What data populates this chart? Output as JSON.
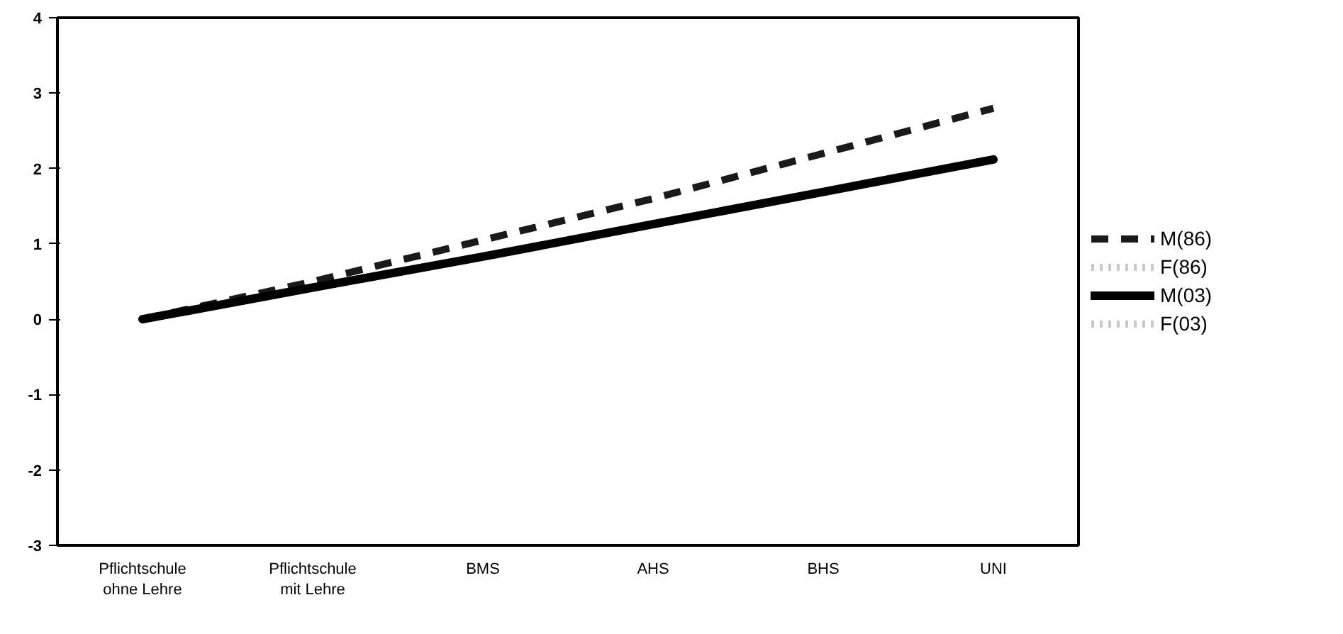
{
  "chart_data": {
    "type": "line",
    "categories": [
      "Pflichtschule\nohne Lehre",
      "Pflichtschule\nmit Lehre",
      "BMS",
      "AHS",
      "BHS",
      "UNI"
    ],
    "series": [
      {
        "name": "M(86)",
        "color": "#1a1a1a",
        "line_style": "dashed",
        "values": [
          0,
          0.5,
          1.05,
          1.6,
          2.2,
          2.8
        ]
      },
      {
        "name": "F(86)",
        "color": "#c8c8c8",
        "line_style": "dotted",
        "values": [
          null,
          null,
          null,
          null,
          null,
          null
        ]
      },
      {
        "name": "M(03)",
        "color": "#000000",
        "line_style": "solid",
        "values": [
          0,
          0.42,
          0.83,
          1.26,
          1.69,
          2.12
        ]
      },
      {
        "name": "F(03)",
        "color": "#c8c8c8",
        "line_style": "dotted",
        "values": [
          null,
          null,
          null,
          null,
          null,
          null
        ]
      }
    ],
    "ylim": [
      -3,
      4
    ],
    "yticks": [
      -3,
      -2,
      -1,
      0,
      1,
      2,
      3,
      4
    ],
    "grid": false,
    "legend": "right",
    "marker": "none"
  }
}
